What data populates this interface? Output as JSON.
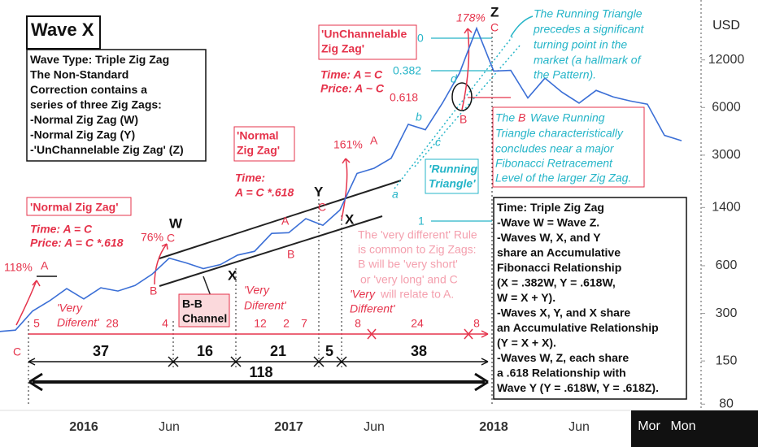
{
  "chart_data": {
    "type": "line",
    "log_scale": true,
    "y_label": "USD",
    "color": "#3b6fd6",
    "categories": [
      null,
      null,
      null,
      null,
      null,
      "2016",
      null,
      null,
      null,
      null,
      "Jun",
      null,
      null,
      null,
      null,
      null,
      null,
      "2017",
      null,
      null,
      null,
      null,
      "Jun",
      null,
      null,
      null,
      null,
      null,
      null,
      "2018",
      null,
      null,
      null,
      null,
      "Jun",
      null,
      null,
      null,
      null,
      null,
      null
    ],
    "values": [
      230,
      235,
      310,
      360,
      430,
      370,
      435,
      415,
      450,
      530,
      670,
      625,
      575,
      610,
      700,
      740,
      960,
      970,
      1190,
      1080,
      1350,
      2300,
      2480,
      2870,
      4700,
      4340,
      6400,
      9900,
      19000,
      10200,
      10300,
      6900,
      9200,
      7500,
      6400,
      7700,
      7000,
      6600,
      6300,
      4000,
      3700
    ],
    "ylim": [
      73,
      28700
    ],
    "yticks": [
      80,
      150,
      300,
      600,
      1400,
      3000,
      6000,
      12000
    ],
    "annotations": [
      "Time: A = C",
      "Price: A = C *.618",
      "Time:",
      "A = C *.618",
      "Time: A = C",
      "Price: A ~ C",
      "W",
      "C",
      "76%",
      "B",
      "X",
      "A",
      "B",
      "Y",
      "C",
      "X",
      "161%",
      "A",
      "a",
      "b",
      "c",
      "d",
      "B",
      "178%",
      "Z",
      "C",
      "118%",
      "A",
      "C",
      "0",
      "0.382",
      "0.618",
      "1",
      "The Running Triangle",
      "precedes a significant",
      "turning point in the",
      "market (a hallmark of",
      "the       Pattern).",
      "The",
      "B",
      "Wave Running",
      "Triangle characteristically",
      "concludes near a major",
      "Fibonacci Retracement",
      "Level of the larger Zig Zag.",
      "The 'very different' Rule",
      "is common to Zig Zags:",
      "B will be 'very short'",
      "or 'very long' and C",
      "will relate to A.",
      "'Very",
      "Diferent'",
      "'Very",
      "Diferent'",
      "'Very",
      "Different'",
      "5",
      "28",
      "4",
      "12",
      "2",
      "7",
      "8",
      "24",
      "8",
      "37",
      "16",
      "21",
      "5",
      "38",
      "118"
    ],
    "boxes": [
      {
        "lines": [
          "Wave X"
        ]
      },
      {
        "lines": [
          "Wave Type: Triple Zig Zag",
          "The Non-Standard",
          "Correction contains a",
          "series of three Zig Zags:",
          "-Normal Zig Zag (W)",
          "-Normal Zig Zag (Y)",
          "-'UnChannelable Zig Zag' (Z)"
        ]
      },
      {
        "lines": [
          "Time: Triple Zig Zag",
          "-Wave W = Wave Z.",
          "-Waves W, X, and Y",
          "share an Accumulative",
          "Fibonacci Relationship",
          "(X = .382W, Y = .618W,",
          "W = X + Y).",
          "-Waves X, Y, and X share",
          "an Accumulative Relationship",
          "(Y = X + X).",
          "-Waves W, Z, each share",
          "a .618 Relationship with",
          "Wave Y (Y = .618W, Y = .618Z)."
        ]
      },
      {
        "lines": [
          "'Normal Zig Zag'"
        ]
      },
      {
        "lines": [
          "'Normal",
          "Zig Zag'"
        ]
      },
      {
        "lines": [
          "'UnChannelable",
          "Zig Zag'"
        ]
      },
      {
        "lines": [
          "B-B",
          "Channel"
        ]
      },
      {
        "lines": [
          "'Running",
          "Triangle'"
        ]
      }
    ],
    "footer_buttons": [
      "Mor",
      "Mon"
    ]
  }
}
